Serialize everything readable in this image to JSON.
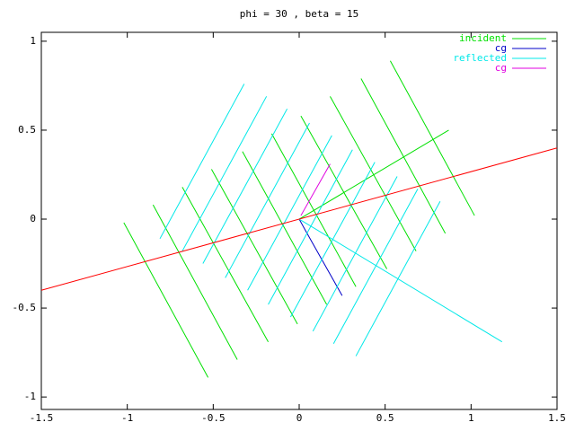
{
  "chart_data": {
    "type": "line",
    "title": "phi = 30 , beta = 15",
    "xlim": [
      -1.5,
      1.5
    ],
    "xticks": [
      -1.5,
      -1,
      -0.5,
      0,
      0.5,
      1,
      1.5
    ],
    "ylim": [
      -1.07,
      1.05
    ],
    "yticks": [
      -1,
      -0.5,
      0,
      0.5,
      1
    ],
    "grid": false,
    "legend": "top-right",
    "series": [
      {
        "name": "incident",
        "color": "#00e000",
        "x": [
          -1.02,
          -0.53,
          null,
          -0.85,
          -0.36,
          null,
          -0.68,
          -0.18,
          null,
          -0.51,
          -0.01,
          null,
          -0.33,
          0.16,
          null,
          -0.16,
          0.33,
          null,
          0.01,
          0.51,
          null,
          0.18,
          0.68,
          null,
          0.36,
          0.85,
          null,
          0.53,
          1.02,
          null,
          0,
          0.87
        ],
        "values": [
          -0.02,
          -0.89,
          null,
          0.08,
          -0.79,
          null,
          0.18,
          -0.69,
          null,
          0.28,
          -0.59,
          null,
          0.38,
          -0.48,
          null,
          0.48,
          -0.38,
          null,
          0.58,
          -0.28,
          null,
          0.69,
          -0.18,
          null,
          0.79,
          -0.08,
          null,
          0.89,
          0.02,
          null,
          0,
          0.5
        ]
      },
      {
        "name": "cg",
        "color": "#0000c8",
        "x": [
          0,
          0.04,
          0.25
        ],
        "values": [
          0,
          -0.07,
          -0.43
        ]
      },
      {
        "name": "reflected",
        "color": "#00e8e8",
        "x": [
          -0.81,
          -0.32,
          null,
          -0.68,
          -0.19,
          null,
          -0.56,
          -0.07,
          null,
          -0.43,
          0.06,
          null,
          -0.3,
          0.19,
          null,
          -0.18,
          0.31,
          null,
          -0.05,
          0.44,
          null,
          0.08,
          0.57,
          null,
          0.2,
          0.69,
          null,
          0.33,
          0.82,
          null,
          0,
          1.18
        ],
        "values": [
          -0.11,
          0.76,
          null,
          -0.18,
          0.69,
          null,
          -0.25,
          0.62,
          null,
          -0.33,
          0.54,
          null,
          -0.4,
          0.47,
          null,
          -0.48,
          0.39,
          null,
          -0.55,
          0.32,
          null,
          -0.63,
          0.24,
          null,
          -0.7,
          0.17,
          null,
          -0.77,
          0.1,
          null,
          0,
          -0.69
        ]
      },
      {
        "name": "cg",
        "color": "#e000e0",
        "x": [
          0.01,
          0.18
        ],
        "values": [
          0.02,
          0.31
        ]
      },
      {
        "color": "#ff0000",
        "x": [
          -1.5,
          1.5
        ],
        "values": [
          -0.4,
          0.4
        ]
      }
    ]
  }
}
